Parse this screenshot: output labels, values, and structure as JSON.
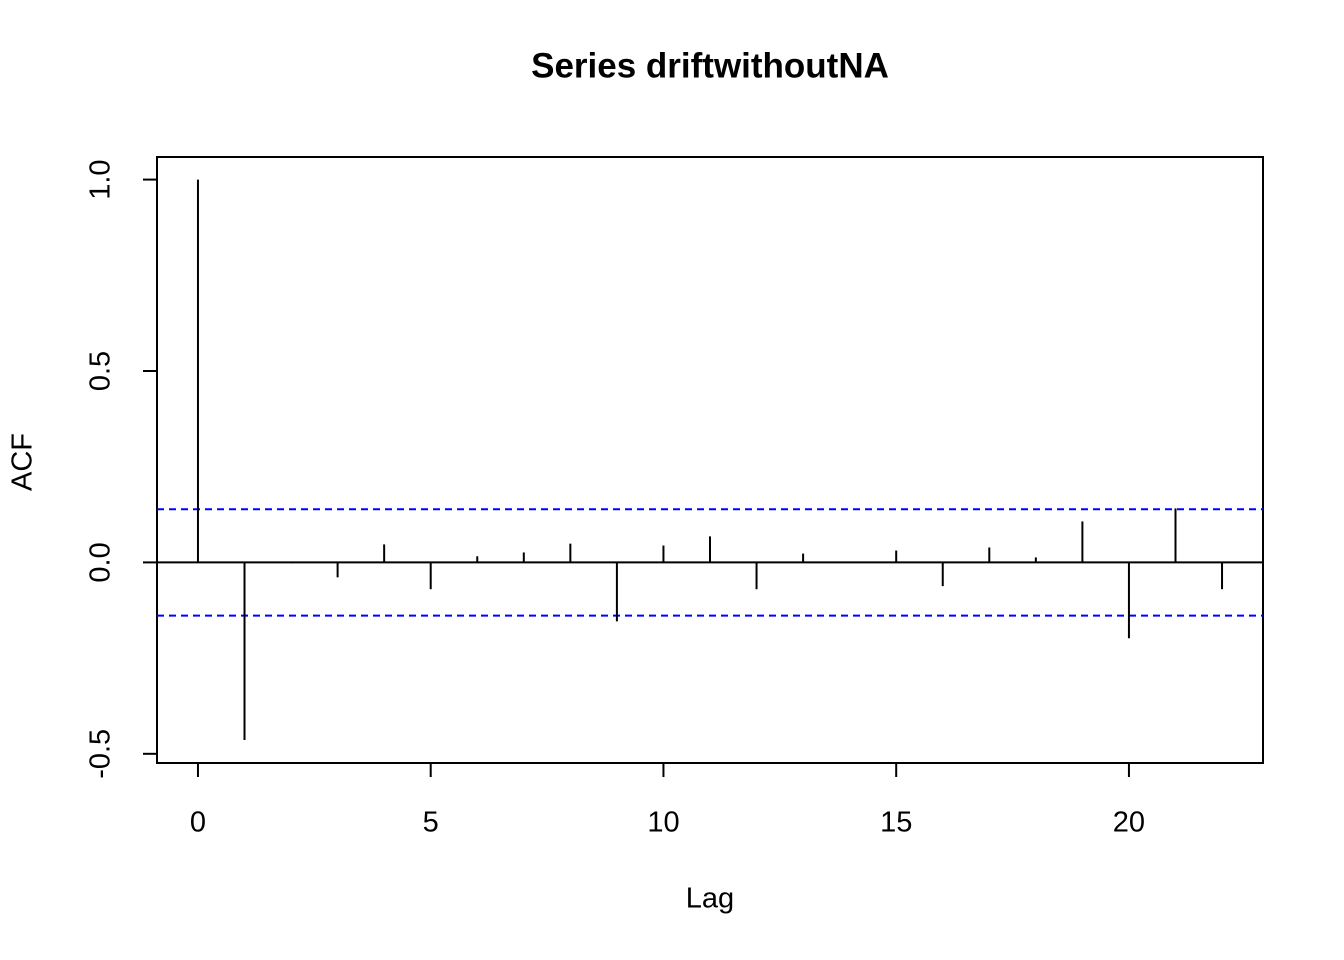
{
  "chart_data": {
    "type": "acf",
    "title": "Series  driftwithoutNA",
    "xlabel": "Lag",
    "ylabel": "ACF",
    "x": [
      0,
      1,
      2,
      3,
      4,
      5,
      6,
      7,
      8,
      9,
      10,
      11,
      12,
      13,
      14,
      15,
      16,
      17,
      18,
      19,
      20,
      21,
      22
    ],
    "values": [
      1,
      -0.464,
      -0.002,
      -0.039,
      0.047,
      -0.07,
      0.016,
      0.026,
      0.049,
      -0.154,
      0.044,
      0.068,
      -0.07,
      0.023,
      0.002,
      0.031,
      -0.062,
      0.039,
      0.013,
      0.107,
      -0.198,
      0.141,
      -0.07
    ],
    "color": "#000000",
    "conf_limits": [
      0.139,
      -0.139
    ],
    "conf_color": "#0000ff",
    "xlim": [
      -0.88,
      22.88
    ],
    "ylim": [
      -0.524,
      1.059
    ],
    "xticks": [
      0,
      5,
      10,
      15,
      20
    ],
    "yticks": [
      {
        "value": -0.5,
        "label": "-0.5"
      },
      {
        "value": 0,
        "label": "0.0"
      },
      {
        "value": 0.5,
        "label": "0.5"
      },
      {
        "value": 1,
        "label": "1.0"
      }
    ]
  }
}
